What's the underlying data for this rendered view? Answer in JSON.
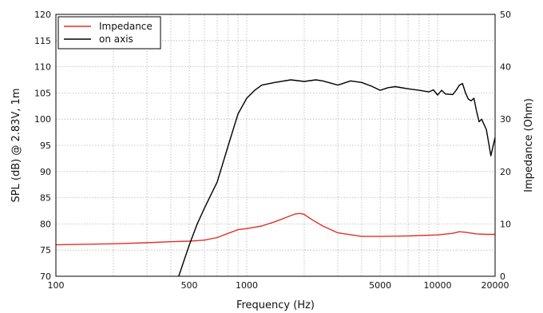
{
  "chart_data": {
    "type": "line",
    "title": "",
    "xlabel": "Frequency (Hz)",
    "ylabel": "SPL (dB) @ 2.83V, 1m",
    "y2label": "Impedance (Ohm)",
    "xscale": "log",
    "xlim": [
      100,
      20000
    ],
    "ylim": [
      70,
      120
    ],
    "y2lim": [
      0,
      50
    ],
    "grid": true,
    "legend_position": "top-left",
    "x_ticks": [
      {
        "value": 100,
        "label": "100"
      },
      {
        "value": 500,
        "label": "500"
      },
      {
        "value": 1000,
        "label": "1000"
      },
      {
        "value": 5000,
        "label": "5000"
      },
      {
        "value": 10000,
        "label": "10000"
      },
      {
        "value": 20000,
        "label": "20000"
      }
    ],
    "y_ticks": [
      {
        "value": 70,
        "label": "70"
      },
      {
        "value": 75,
        "label": "75"
      },
      {
        "value": 80,
        "label": "80"
      },
      {
        "value": 85,
        "label": "85"
      },
      {
        "value": 90,
        "label": "90"
      },
      {
        "value": 95,
        "label": "95"
      },
      {
        "value": 100,
        "label": "100"
      },
      {
        "value": 105,
        "label": "105"
      },
      {
        "value": 110,
        "label": "110"
      },
      {
        "value": 115,
        "label": "115"
      },
      {
        "value": 120,
        "label": "120"
      }
    ],
    "y2_ticks": [
      {
        "value": 0,
        "label": "0"
      },
      {
        "value": 10,
        "label": "10"
      },
      {
        "value": 20,
        "label": "20"
      },
      {
        "value": 30,
        "label": "30"
      },
      {
        "value": 40,
        "label": "40"
      },
      {
        "value": 50,
        "label": "50"
      }
    ],
    "series": [
      {
        "name": "Impedance",
        "color": "#e0302a",
        "axis": "right",
        "x": [
          100,
          200,
          300,
          400,
          500,
          600,
          700,
          800,
          900,
          1000,
          1200,
          1400,
          1600,
          1800,
          1900,
          2000,
          2200,
          2500,
          3000,
          4000,
          5000,
          7000,
          10000,
          12000,
          13000,
          14000,
          16000,
          18000,
          20000
        ],
        "y": [
          6.0,
          6.2,
          6.4,
          6.6,
          6.7,
          6.9,
          7.4,
          8.2,
          8.9,
          9.1,
          9.6,
          10.4,
          11.2,
          11.9,
          12.0,
          11.8,
          10.8,
          9.6,
          8.3,
          7.6,
          7.6,
          7.7,
          7.9,
          8.2,
          8.5,
          8.4,
          8.1,
          8.0,
          8.0
        ]
      },
      {
        "name": "on axis",
        "color": "#000000",
        "axis": "left",
        "x": [
          440,
          500,
          550,
          600,
          700,
          800,
          900,
          1000,
          1100,
          1200,
          1400,
          1700,
          2000,
          2300,
          2500,
          3000,
          3500,
          4000,
          4500,
          5000,
          5500,
          6000,
          7000,
          8000,
          9000,
          9500,
          10000,
          10500,
          11000,
          12000,
          12500,
          13000,
          13500,
          14000,
          14500,
          15000,
          15500,
          16000,
          16500,
          17000,
          18000,
          19000,
          20000
        ],
        "y": [
          70,
          76,
          80,
          83,
          88,
          95,
          101,
          104,
          105.5,
          106.5,
          107,
          107.5,
          107.2,
          107.5,
          107.3,
          106.5,
          107.3,
          107,
          106.3,
          105.5,
          106,
          106.2,
          105.8,
          105.5,
          105.2,
          105.6,
          104.6,
          105.5,
          104.8,
          104.7,
          105.5,
          106.5,
          106.8,
          105,
          103.8,
          103.5,
          104,
          101.5,
          99.5,
          100,
          98,
          93,
          96.5
        ]
      }
    ]
  }
}
